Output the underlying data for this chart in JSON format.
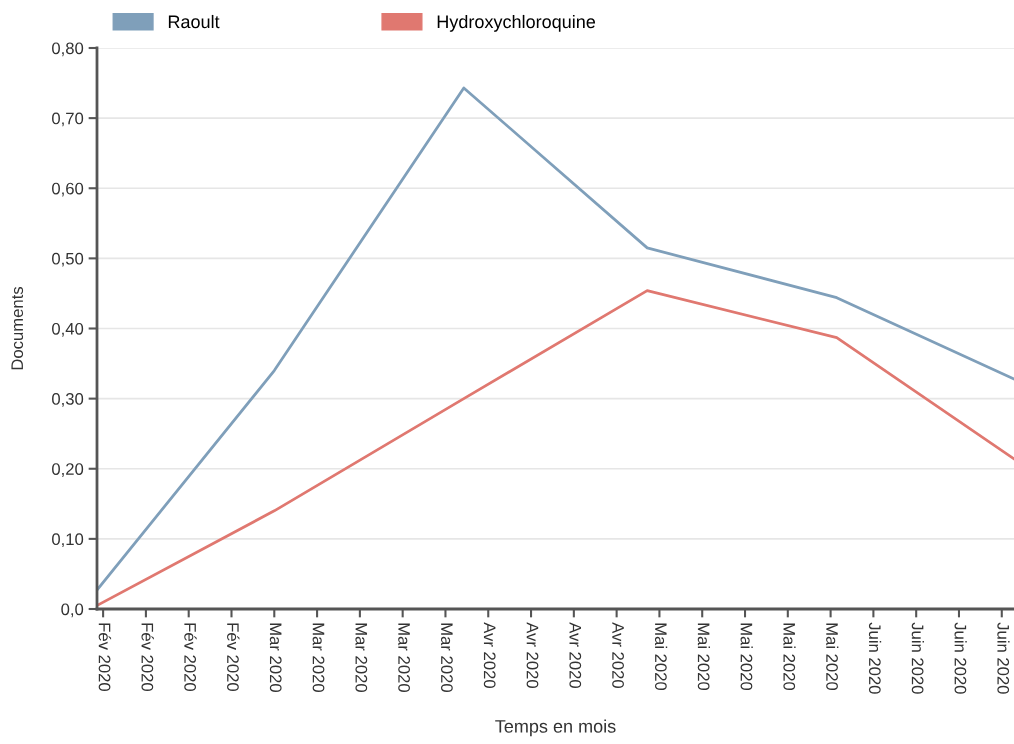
{
  "chart_data": {
    "type": "line",
    "xlabel": "Temps en mois",
    "ylabel": "Documents",
    "x": [
      "2020-02-01",
      "2020-03-01",
      "2020-04-01",
      "2020-05-01",
      "2020-06-01",
      "2020-06-30"
    ],
    "series": [
      {
        "name": "Raoult",
        "color": "#7f9fba",
        "values": [
          0.027,
          0.34,
          0.743,
          0.515,
          0.444,
          0.328
        ]
      },
      {
        "name": "Hydroxychloroquine",
        "color": "#e07870",
        "values": [
          0.005,
          0.14,
          0.3,
          0.454,
          0.387,
          0.214
        ]
      }
    ],
    "xlim": [
      "2020-02-01",
      "2020-06-30"
    ],
    "xticks": [
      {
        "value": "2020-02-02",
        "label": "Fév 2020"
      },
      {
        "value": "2020-02-09",
        "label": "Fév 2020"
      },
      {
        "value": "2020-02-16",
        "label": "Fév 2020"
      },
      {
        "value": "2020-02-23",
        "label": "Fév 2020"
      },
      {
        "value": "2020-03-01",
        "label": "Mar 2020"
      },
      {
        "value": "2020-03-08",
        "label": "Mar 2020"
      },
      {
        "value": "2020-03-15",
        "label": "Mar 2020"
      },
      {
        "value": "2020-03-22",
        "label": "Mar 2020"
      },
      {
        "value": "2020-03-29",
        "label": "Mar 2020"
      },
      {
        "value": "2020-04-05",
        "label": "Avr 2020"
      },
      {
        "value": "2020-04-12",
        "label": "Avr 2020"
      },
      {
        "value": "2020-04-19",
        "label": "Avr 2020"
      },
      {
        "value": "2020-04-26",
        "label": "Avr 2020"
      },
      {
        "value": "2020-05-03",
        "label": "Mai 2020"
      },
      {
        "value": "2020-05-10",
        "label": "Mai 2020"
      },
      {
        "value": "2020-05-17",
        "label": "Mai 2020"
      },
      {
        "value": "2020-05-24",
        "label": "Mai 2020"
      },
      {
        "value": "2020-05-31",
        "label": "Mai 2020"
      },
      {
        "value": "2020-06-07",
        "label": "Juin 2020"
      },
      {
        "value": "2020-06-14",
        "label": "Juin 2020"
      },
      {
        "value": "2020-06-21",
        "label": "Juin 2020"
      },
      {
        "value": "2020-06-28",
        "label": "Juin 2020"
      }
    ],
    "ylim": [
      0,
      0.8
    ],
    "yticks": [
      {
        "value": 0,
        "label": "0,0"
      },
      {
        "value": 0.1,
        "label": "0,10"
      },
      {
        "value": 0.2,
        "label": "0,20"
      },
      {
        "value": 0.3,
        "label": "0,30"
      },
      {
        "value": 0.4,
        "label": "0,40"
      },
      {
        "value": 0.5,
        "label": "0,50"
      },
      {
        "value": 0.6,
        "label": "0,60"
      },
      {
        "value": 0.7,
        "label": "0,70"
      },
      {
        "value": 0.8,
        "label": "0,80"
      }
    ],
    "grid": "y",
    "legend": "top left",
    "marker": "none",
    "line_style": "solid"
  }
}
